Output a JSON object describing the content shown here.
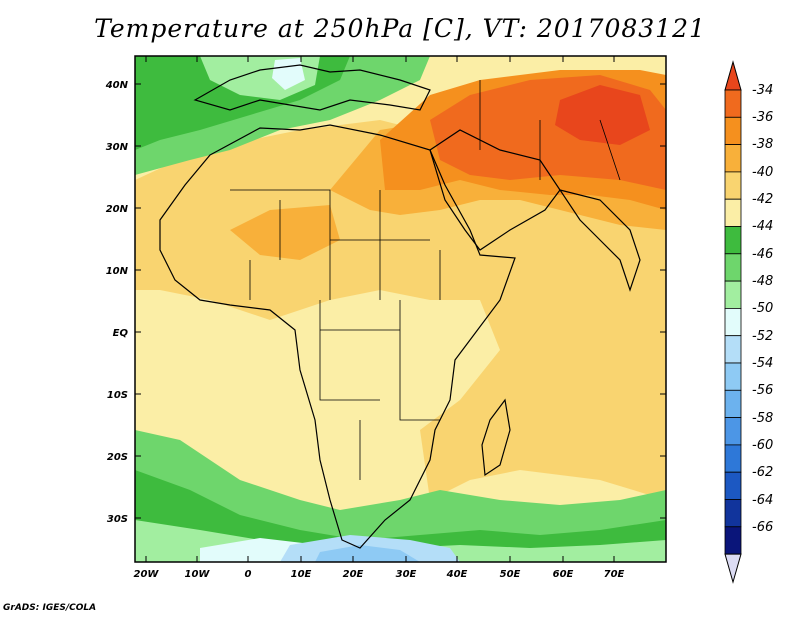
{
  "title": "Temperature at 250hPa [C], VT: 2017083121",
  "credit": "GrADS: IGES/COLA",
  "map": {
    "lat_labels": [
      "40N",
      "30N",
      "20N",
      "10N",
      "EQ",
      "10S",
      "20S",
      "30S"
    ],
    "lon_labels": [
      "20W",
      "10W",
      "0",
      "10E",
      "20E",
      "30E",
      "40E",
      "50E",
      "60E",
      "70E"
    ]
  },
  "colorbar": {
    "levels": [
      "-34",
      "-36",
      "-38",
      "-40",
      "-42",
      "-44",
      "-46",
      "-48",
      "-50",
      "-52",
      "-54",
      "-56",
      "-58",
      "-60",
      "-62",
      "-64",
      "-66"
    ],
    "colors": [
      "#e8461c",
      "#f06a1e",
      "#f5901e",
      "#f8b03a",
      "#f9d470",
      "#fbeea6",
      "#3ebb3e",
      "#6ed66c",
      "#a2eea0",
      "#e2fcfb",
      "#b4def8",
      "#8ecaf4",
      "#6cb2ee",
      "#4c96e6",
      "#2e78d8",
      "#1c58c2",
      "#11349c",
      "#0a157a",
      "#dcdcf4"
    ]
  },
  "field_colors": {
    "warm_orange": "#f5901e",
    "hot": "#f06a1e",
    "hottest": "#e8461c",
    "light_orange": "#f8b03a",
    "yellow": "#f9d470",
    "pale_yellow": "#fbeea6",
    "green": "#3ebb3e",
    "light_green": "#6ed66c",
    "pale_green": "#a2eea0",
    "cyan": "#e2fcfb",
    "light_blue": "#b4def8",
    "blue": "#8ecaf4"
  }
}
